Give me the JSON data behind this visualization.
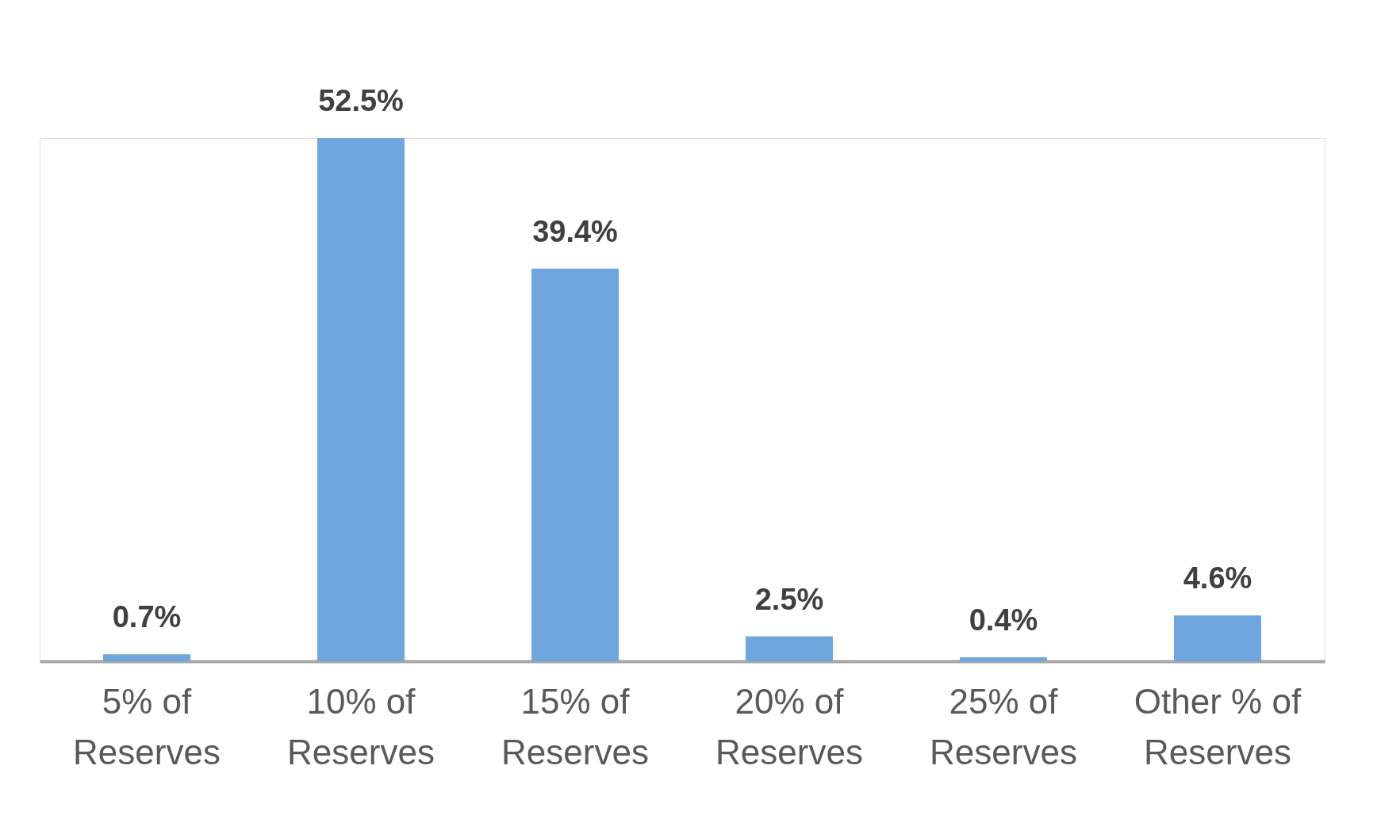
{
  "chart_data": {
    "type": "bar",
    "categories": [
      "5% of Reserves",
      "10% of Reserves",
      "15% of Reserves",
      "20% of Reserves",
      "25% of Reserves",
      "Other % of Reserves"
    ],
    "values": [
      0.7,
      52.5,
      39.4,
      2.5,
      0.4,
      4.6
    ],
    "value_labels": [
      "0.7%",
      "52.5%",
      "39.4%",
      "2.5%",
      "0.4%",
      "4.6%"
    ],
    "color": "#6fa6de",
    "grid": false
  }
}
